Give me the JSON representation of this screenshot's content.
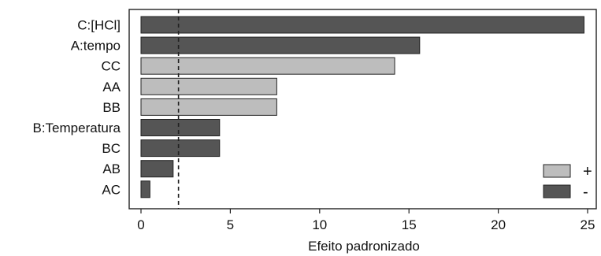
{
  "chart_data": {
    "type": "bar",
    "orientation": "horizontal",
    "categories": [
      "C:[HCl]",
      "A:tempo",
      "CC",
      "AA",
      "BB",
      "B:Temperatura",
      "BC",
      "AB",
      "AC"
    ],
    "values": [
      24.8,
      15.6,
      14.2,
      7.6,
      7.6,
      4.4,
      4.4,
      1.8,
      0.5
    ],
    "signs": [
      "-",
      "-",
      "+",
      "+",
      "+",
      "-",
      "-",
      "-",
      "-"
    ],
    "xlabel": "Efeito padronizado",
    "ylabel": "",
    "xlim": [
      0,
      25
    ],
    "xticks": [
      0,
      5,
      10,
      15,
      20,
      25
    ],
    "reference_line": 2.1,
    "legend": {
      "position": "bottom-right",
      "entries": [
        {
          "label": "+",
          "color": "#bdbdbd"
        },
        {
          "label": "-",
          "color": "#555555"
        }
      ]
    },
    "colors": {
      "+": "#bdbdbd",
      "-": "#555555"
    },
    "grid": false
  }
}
